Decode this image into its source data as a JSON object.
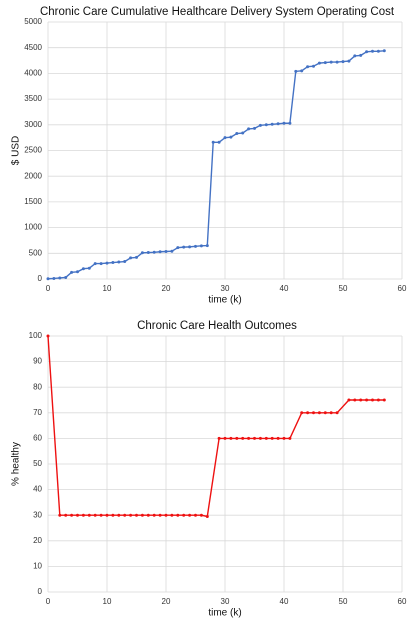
{
  "chart_data": [
    {
      "type": "line",
      "title": "Chronic Care Cumulative Healthcare Delivery System Operating Cost",
      "xlabel": "time (k)",
      "ylabel": "$ USD",
      "xlim": [
        0,
        60
      ],
      "xticks": [
        0,
        10,
        20,
        30,
        40,
        50,
        60
      ],
      "ylim": [
        0,
        5000
      ],
      "yticks": [
        0,
        500,
        1000,
        1500,
        2000,
        2500,
        3000,
        3500,
        4000,
        4500,
        5000
      ],
      "grid": true,
      "series": [
        {
          "color": "#4472c4",
          "x": [
            0,
            1,
            2,
            3,
            4,
            5,
            6,
            7,
            8,
            9,
            10,
            11,
            12,
            13,
            14,
            15,
            16,
            17,
            18,
            19,
            20,
            21,
            22,
            23,
            24,
            25,
            26,
            27,
            28,
            29,
            30,
            31,
            32,
            33,
            34,
            35,
            36,
            37,
            38,
            39,
            40,
            41,
            42,
            43,
            44,
            45,
            46,
            47,
            48,
            49,
            50,
            51,
            52,
            53,
            54,
            55,
            56,
            57
          ],
          "values": [
            5,
            10,
            20,
            30,
            130,
            140,
            200,
            210,
            300,
            300,
            310,
            320,
            330,
            340,
            410,
            420,
            510,
            515,
            520,
            530,
            535,
            540,
            610,
            620,
            625,
            635,
            645,
            650,
            2660,
            2660,
            2750,
            2760,
            2830,
            2840,
            2920,
            2930,
            2990,
            3000,
            3010,
            3020,
            3030,
            3030,
            4040,
            4050,
            4130,
            4140,
            4200,
            4210,
            4220,
            4220,
            4230,
            4240,
            4340,
            4350,
            4420,
            4430,
            4430,
            4440
          ]
        }
      ]
    },
    {
      "type": "line",
      "title": "Chronic Care Health Outcomes",
      "xlabel": "time (k)",
      "ylabel": "% healthy",
      "xlim": [
        0,
        60
      ],
      "xticks": [
        0,
        10,
        20,
        30,
        40,
        50,
        60
      ],
      "ylim": [
        0,
        100
      ],
      "yticks": [
        0,
        10,
        20,
        30,
        40,
        50,
        60,
        70,
        80,
        90,
        100
      ],
      "grid": true,
      "series": [
        {
          "color": "#ee1111",
          "x": [
            0,
            2,
            3,
            4,
            5,
            6,
            7,
            8,
            9,
            10,
            11,
            12,
            13,
            14,
            15,
            16,
            17,
            18,
            19,
            20,
            21,
            22,
            23,
            24,
            25,
            26,
            27,
            29,
            30,
            31,
            32,
            33,
            34,
            35,
            36,
            37,
            38,
            39,
            40,
            41,
            43,
            44,
            45,
            46,
            47,
            48,
            49,
            51,
            52,
            53,
            54,
            55,
            56,
            57
          ],
          "values": [
            100,
            30,
            30,
            30,
            30,
            30,
            30,
            30,
            30,
            30,
            30,
            30,
            30,
            30,
            30,
            30,
            30,
            30,
            30,
            30,
            30,
            30,
            30,
            30,
            30,
            30,
            29.5,
            60,
            60,
            60,
            60,
            60,
            60,
            60,
            60,
            60,
            60,
            60,
            60,
            60,
            70,
            70,
            70,
            70,
            70,
            70,
            70,
            75,
            75,
            75,
            75,
            75,
            75,
            75
          ]
        }
      ]
    }
  ]
}
